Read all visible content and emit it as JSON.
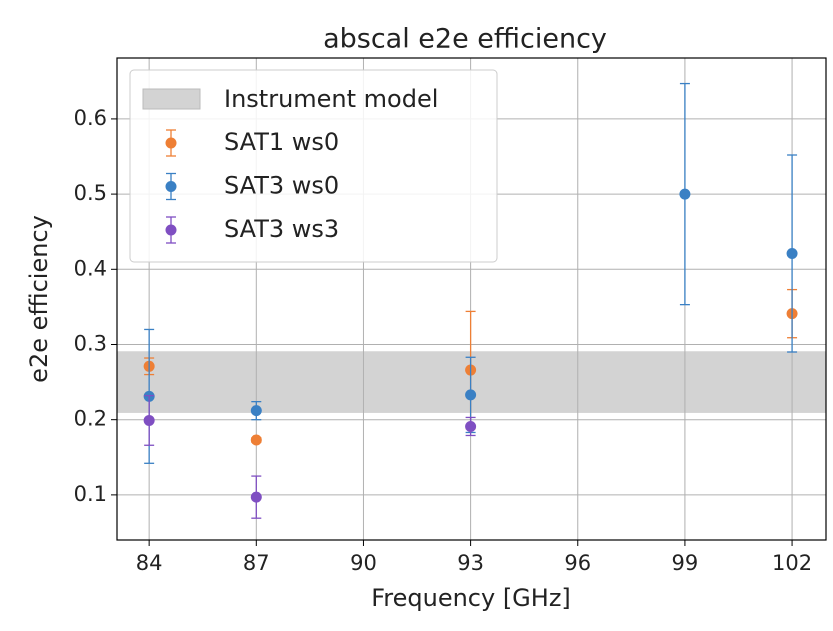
{
  "chart_data": {
    "type": "errorbar",
    "title": "abscal e2e efficiency",
    "x_label": "Frequency [GHz]",
    "y_label": "e2e efficiency",
    "xlim": [
      83.1,
      102.95
    ],
    "ylim": [
      0.04,
      0.681
    ],
    "xticks": [
      84,
      87,
      90,
      93,
      96,
      99,
      102
    ],
    "yticks": [
      0.1,
      0.2,
      0.3,
      0.4,
      0.5,
      0.6
    ],
    "grid": true,
    "legend": "upper left",
    "band": {
      "name": "Instrument model",
      "range": [
        0.209,
        0.291
      ],
      "color": "#d3d3d3"
    },
    "series": [
      {
        "name": "SAT1 ws0",
        "color": "#ee7f35",
        "x": [
          84,
          87,
          93,
          102
        ],
        "values": [
          0.271,
          0.173,
          0.266,
          0.341
        ],
        "errors": [
          0.011,
          0.003,
          0.078,
          0.032
        ]
      },
      {
        "name": "SAT3 ws0",
        "color": "#3a80c4",
        "x": [
          84,
          87,
          93,
          99,
          102
        ],
        "values": [
          0.231,
          0.212,
          0.233,
          0.5,
          0.421
        ],
        "errors": [
          0.089,
          0.012,
          0.05,
          0.147,
          0.131
        ]
      },
      {
        "name": "SAT3 ws3",
        "color": "#7f4fc2",
        "x": [
          84,
          87,
          93
        ],
        "values": [
          0.199,
          0.097,
          0.191
        ],
        "errors": [
          0.033,
          0.028,
          0.012
        ]
      }
    ]
  }
}
